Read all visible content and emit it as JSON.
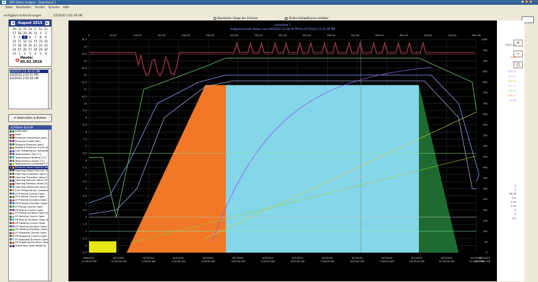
{
  "window": {
    "title": "BPS Daten Analyse - Datenbank 1"
  },
  "menu": [
    "Datei",
    "Bearbeiten",
    "Fenster",
    "Sprache",
    "Hilfe"
  ],
  "subbar": {
    "label": "verfügbare Aufzeichnungen",
    "timestamp": "2/5/2010 3:41:49 AM",
    "check1": "Konstante Länge der X-Achse",
    "check2": "Online Schwellkurve sichtbar"
  },
  "calendar": {
    "month": "August 2015",
    "dow": [
      "Mo",
      "Di",
      "Mi",
      "Do",
      "Fr",
      "Sa",
      "So"
    ],
    "days": [
      "27",
      "28",
      "29",
      "30",
      "31",
      "1",
      "2",
      "3",
      "4",
      "5",
      "6",
      "7",
      "8",
      "9",
      "10",
      "11",
      "12",
      "13",
      "14",
      "15",
      "16",
      "17",
      "18",
      "19",
      "20",
      "21",
      "22",
      "23",
      "24",
      "25",
      "26",
      "27",
      "28",
      "29",
      "30",
      "31",
      "1",
      "2",
      "3",
      "4",
      "5",
      "6"
    ],
    "selected_index": 9,
    "today": "Heute: 05.02.2010"
  },
  "records": [
    "2/4/2015 10:30:32 PM",
    "2/4/2015 2:07:57 PM",
    "2/4/2015 2:05:54 AM"
  ],
  "load_button": "Datensätze aufheben",
  "channels_header": "sichtbare Kanäle",
  "channels": [
    {
      "label": "Automatic",
      "color": "#2e8b2e"
    },
    {
      "label": "Fault",
      "color": "#c0392b"
    },
    {
      "label": "Pressure Livestream [bar]",
      "color": "#8b0000"
    },
    {
      "label": "Pressure Inside [bar]",
      "color": "#c71585"
    },
    {
      "label": "Setpoint Pressure [bar]",
      "color": "#228b22"
    },
    {
      "label": "Setpoint Pressure Curve [bar]",
      "color": "#b8860b"
    },
    {
      "label": "Calc Temperature Saturated Steam Auto",
      "color": "#6a5acd"
    },
    {
      "label": "Temperature Top [°C]",
      "color": "#4169e1"
    },
    {
      "label": "Temperature Bottom [°C]",
      "color": "#20b2aa"
    },
    {
      "label": "Temperature Inside [°C]",
      "color": "#708090"
    },
    {
      "label": "Temperature Livestream [°C]",
      "color": "#9acd32"
    },
    {
      "label": "Pressure Value Product [bar°C]",
      "color": "#ff8c00"
    },
    {
      "label": "Opening Global Vacuum Valve [%]",
      "color": "#2f4f4f"
    },
    {
      "label": "Opening Livesteam Valve [%]",
      "color": "#556b2f"
    },
    {
      "label": "Opening Transition Valve [%]",
      "color": "#8b4513"
    },
    {
      "label": "Opening Vacuum Valve [%]",
      "color": "#483d8b"
    },
    {
      "label": "Opening Release Valve [%]",
      "color": "#b22222"
    },
    {
      "label": "Opening Advanced Valve [%]",
      "color": "#5f9ea0"
    },
    {
      "label": "Calc Temperature Livesteam [°C]",
      "color": "#daa520"
    },
    {
      "label": "LP Preheat Counts Open",
      "color": "#4682b4"
    },
    {
      "label": "LP Preheat Counts Open",
      "color": "#6b8e23"
    },
    {
      "label": "LP Preheat Duration Open [min]",
      "color": "#cd5c5c"
    },
    {
      "label": "HP Preheat Duration Open [min]",
      "color": "#1e90ff"
    },
    {
      "label": "LP Rising Counts Open",
      "color": "#3cb371"
    },
    {
      "label": "HP Rising Counts Open",
      "color": "#9932cc"
    },
    {
      "label": "LP Rising Duration Open [min]",
      "color": "#e9967a"
    },
    {
      "label": "LP Holding Counts Open",
      "color": "#8fbc8f"
    },
    {
      "label": "HP Rising Duration Open [min]",
      "color": "#00ced1"
    },
    {
      "label": "HP Holding Counts Open",
      "color": "#ff6347"
    },
    {
      "label": "LP Holding Duration Open [min]",
      "color": "#7b68ee"
    },
    {
      "label": "HP Holding Duration Open [min]",
      "color": "#32cd32"
    },
    {
      "label": "LP Stopping Counts Open",
      "color": "#db7093"
    },
    {
      "label": "HP Stopping Counts Open",
      "color": "#bdb76b"
    },
    {
      "label": "LP Stopping Duration Open [min]",
      "color": "#87ceeb"
    },
    {
      "label": "HP Stopping Duration Open [min]",
      "color": "#d2691e"
    },
    {
      "label": "Steamflow Heat Rated [l]",
      "color": "#4b0082"
    }
  ],
  "selected_channel_index": 11,
  "chart_data": {
    "type": "line",
    "title": "Aufgezeichnete Daten vom 6/6/2010 10:38:39 PM bis 6/7/2010 12:24:39 PM",
    "subtitle": "Aufnahme 1",
    "top_axis": [
      "0",
      "50:00",
      "100:00",
      "150:00",
      "200:00",
      "250:00",
      "300:00",
      "350:00",
      "400:00",
      "450:00",
      "500:00",
      "550:00",
      "600:00",
      "650:00",
      "700:00",
      "750:00",
      "800:00"
    ],
    "y_left": [
      "14.5",
      "14",
      "13.5",
      "13",
      "12.5",
      "12",
      "11.5",
      "11",
      "10.5",
      "10",
      "9.5",
      "9",
      "8.5",
      "8",
      "7.5",
      "7",
      "6.5",
      "6",
      "5.5",
      "5",
      "4.5",
      "4",
      "3.5",
      "3",
      "2.5",
      "2",
      "1.5",
      "1",
      "0.5",
      "0",
      "-0.5"
    ],
    "y_right": [
      "1000",
      "950",
      "900",
      "850",
      "800",
      "750",
      "700",
      "650",
      "600",
      "550",
      "500",
      "450",
      "400",
      "350",
      "300",
      "250",
      "200",
      "150",
      "100",
      "50",
      "0"
    ],
    "x_ticks": [
      [
        "6/6/2010",
        "11:00:00 PM"
      ],
      [
        "6/7/2010",
        "12:00:00 AM"
      ],
      [
        "6/7/2010",
        "1:00:00 AM"
      ],
      [
        "6/7/2010",
        "2:00:00 AM"
      ],
      [
        "6/7/2010",
        "3:00:00 AM"
      ],
      [
        "6/7/2010",
        "4:00:00 AM"
      ],
      [
        "6/7/2010",
        "5:00:00 AM"
      ],
      [
        "6/7/2010",
        "6:00:00 AM"
      ],
      [
        "6/7/2010",
        "7:00:00 AM"
      ],
      [
        "6/7/2010",
        "8:00:00 AM"
      ],
      [
        "6/7/2010",
        "9:00:00 AM"
      ],
      [
        "6/7/2010",
        "10:00:00 AM"
      ],
      [
        "6/7/2010",
        "11:00:00 AM"
      ],
      [
        "6/7/2010",
        "12:00:00 PM"
      ]
    ],
    "x_end_label": [
      "6/7/2010",
      "12:24:00 PM"
    ],
    "cursor_value": "350.0 °C",
    "readouts": [
      "1000",
      "750",
      "3.04",
      "280.36",
      "281.81",
      "233.64",
      "202.79",
      "123.44",
      "116.41",
      "24.03"
    ],
    "readouts2": [
      "0",
      "1",
      "38.36",
      "6.4",
      "3.04",
      "1.05",
      "0",
      "0",
      "0.5"
    ]
  },
  "colors": {
    "orange": "#f07828",
    "cyan": "#84d6e8",
    "green": "#1e6a30",
    "yellow": "#e6e614"
  }
}
